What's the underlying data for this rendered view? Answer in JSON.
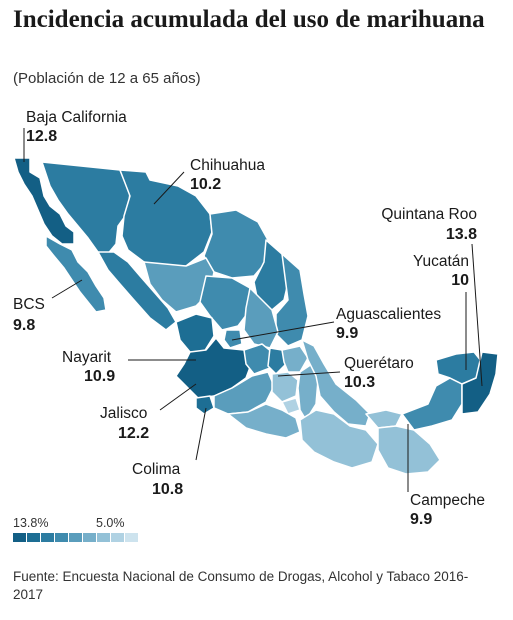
{
  "title": "Incidencia acumulada del uso de marihuana",
  "subtitle": "(Población de 12 a 65 años)",
  "regions": {
    "baja_california": {
      "name": "Baja California",
      "value": "12.8"
    },
    "chihuahua": {
      "name": "Chihuahua",
      "value": "10.2"
    },
    "quintana_roo": {
      "name": "Quintana Roo",
      "value": "13.8"
    },
    "yucatan": {
      "name": "Yucatán",
      "value": "10"
    },
    "bcs": {
      "name": "BCS",
      "value": "9.8"
    },
    "aguascalientes": {
      "name": "Aguascalientes",
      "value": "9.9"
    },
    "nayarit": {
      "name": "Nayarit",
      "value": "10.9"
    },
    "queretaro": {
      "name": "Querétaro",
      "value": "10.3"
    },
    "jalisco": {
      "name": "Jalisco",
      "value": "12.2"
    },
    "colima": {
      "name": "Colima",
      "value": "10.8"
    },
    "campeche": {
      "name": "Campeche",
      "value": "9.9"
    }
  },
  "legend": {
    "max_label": "13.8%",
    "min_label": "5.0%",
    "colors": [
      "#135f85",
      "#1d6e94",
      "#2c7ca1",
      "#3f8bae",
      "#5a9dbc",
      "#76afca",
      "#93c1d7",
      "#b0d2e3",
      "#cde3ee"
    ]
  },
  "source": "Fuente: Encuesta Nacional de Consumo de Drogas, Alcohol y Tabaco 2016-2017"
}
